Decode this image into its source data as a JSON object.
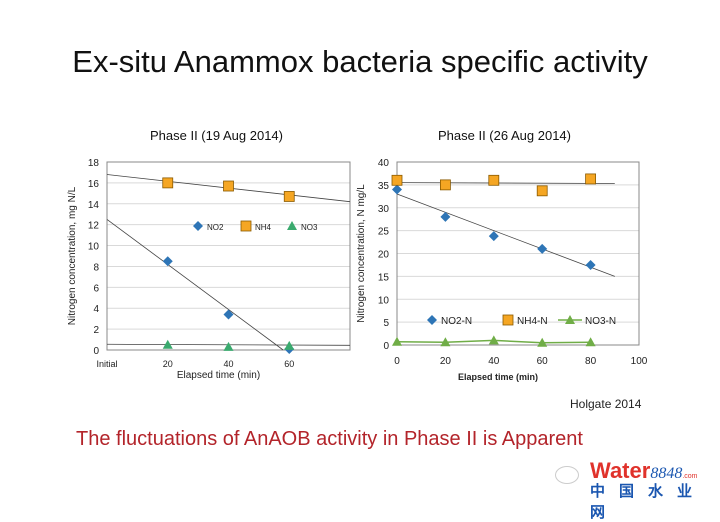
{
  "slide": {
    "title": "Ex-situ Anammox bacteria specific activity",
    "credit": "Holgate 2014",
    "conclusion": "The fluctuations of AnAOB activity in Phase II is Apparent",
    "logo": {
      "brand": "Water",
      "number": "8848",
      "suffix": ".com",
      "chinese": "中国水业网"
    }
  },
  "colors": {
    "no2": "#2e75b6",
    "nh4": "#f5a623",
    "no3_left": "#3aaa6e",
    "no3_right": "#70ad47",
    "trend": "#444444",
    "conclusion": "#b3242a"
  },
  "chart_data": [
    {
      "type": "scatter",
      "title": "Phase II (19 Aug 2014)",
      "xlabel": "Elapsed time (min)",
      "ylabel": "Nitrogen concentration, mg N/L",
      "xlim": [
        0,
        80
      ],
      "ylim": [
        0,
        18
      ],
      "yticks": [
        0,
        2,
        4,
        6,
        8,
        10,
        12,
        14,
        16,
        18
      ],
      "xticks": [
        {
          "v": 0,
          "label": "Initial"
        },
        {
          "v": 20,
          "label": "20"
        },
        {
          "v": 40,
          "label": "40"
        },
        {
          "v": 60,
          "label": "60"
        }
      ],
      "grid": true,
      "legend": "middle",
      "series": [
        {
          "name": "NO2",
          "marker": "diamond",
          "x": [
            20,
            40,
            60
          ],
          "y": [
            8.5,
            3.4,
            0.1
          ],
          "trendline": [
            [
              0,
              12.5
            ],
            [
              58,
              0
            ]
          ]
        },
        {
          "name": "NH4",
          "marker": "square",
          "x": [
            20,
            40,
            60
          ],
          "y": [
            16,
            15.7,
            14.7
          ],
          "trendline": [
            [
              0,
              16.8
            ],
            [
              80,
              14.2
            ]
          ]
        },
        {
          "name": "NO3",
          "marker": "triangle",
          "x": [
            20,
            40,
            60
          ],
          "y": [
            0.5,
            0.3,
            0.4
          ],
          "trendline": [
            [
              0,
              0.55
            ],
            [
              80,
              0.45
            ]
          ]
        }
      ]
    },
    {
      "type": "scatter",
      "title": "Phase II (26 Aug 2014)",
      "xlabel": "Elapsed time (min)",
      "ylabel": "Nitrogen concentration, N mg/L",
      "xlim": [
        0,
        100
      ],
      "ylim": [
        0,
        40
      ],
      "yticks": [
        0,
        5,
        10,
        15,
        20,
        25,
        30,
        35,
        40
      ],
      "xticks": [
        {
          "v": 0,
          "label": "0"
        },
        {
          "v": 20,
          "label": "20"
        },
        {
          "v": 40,
          "label": "40"
        },
        {
          "v": 60,
          "label": "60"
        },
        {
          "v": 80,
          "label": "80"
        },
        {
          "v": 100,
          "label": "100"
        }
      ],
      "grid": true,
      "legend": "bottom",
      "series": [
        {
          "name": "NO2-N",
          "marker": "diamond",
          "x": [
            0,
            20,
            40,
            60,
            80
          ],
          "y": [
            34,
            28,
            23.8,
            21,
            17.5
          ],
          "trendline": [
            [
              0,
              33
            ],
            [
              90,
              15
            ]
          ]
        },
        {
          "name": "NH4-N",
          "marker": "square",
          "x": [
            0,
            20,
            40,
            60,
            80
          ],
          "y": [
            36,
            35,
            36,
            33.7,
            36.3
          ],
          "trendline": [
            [
              0,
              35.5
            ],
            [
              90,
              35.3
            ]
          ]
        },
        {
          "name": "NO3-N",
          "marker": "triangle",
          "line": true,
          "x": [
            0,
            20,
            40,
            60,
            80
          ],
          "y": [
            0.7,
            0.6,
            1,
            0.5,
            0.6
          ]
        }
      ]
    }
  ]
}
